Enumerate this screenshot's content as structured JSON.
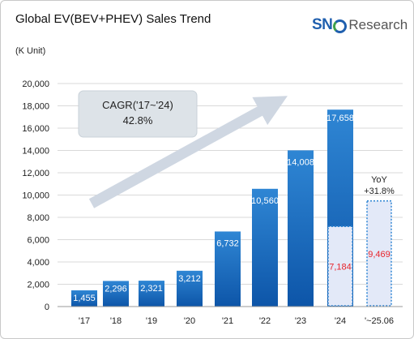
{
  "title": "Global EV(BEV+PHEV) Sales Trend",
  "unit": "(K Unit)",
  "logo": {
    "sn": "SN",
    "research": "Research"
  },
  "annotations": {
    "cagr_label": "CAGR('17~'24)",
    "cagr_value": "42.8%",
    "yoy_label": "YoY",
    "yoy_value": "+31.8%"
  },
  "colors": {
    "bar_top": "#2f86d4",
    "bar_bottom": "#0d55a8",
    "partial_fill": "#e3e9f8",
    "partial_border": "#2f86d4",
    "partial_label": "#e8242b",
    "arrow": "#cfd7e2",
    "cagr_box": "#dde3e8",
    "grid": "#d9d9d9"
  },
  "chart_data": {
    "type": "bar",
    "title": "Global EV(BEV+PHEV) Sales Trend",
    "ylabel": "(K Unit)",
    "ylim": [
      0,
      20000
    ],
    "yticks": [
      0,
      2000,
      4000,
      6000,
      8000,
      10000,
      12000,
      14000,
      16000,
      18000,
      20000
    ],
    "ytick_labels": [
      "0",
      "2,000",
      "4,000",
      "6,000",
      "8,000",
      "10,000",
      "12,000",
      "14,000",
      "16,000",
      "18,000",
      "20,000"
    ],
    "grid": true,
    "categories": [
      "'17",
      "'18",
      "'19",
      "'20",
      "'21",
      "'22",
      "'23",
      "'24",
      "'~25.06"
    ],
    "series": [
      {
        "values": [
          1455,
          2296,
          2321,
          3212,
          6732,
          10560,
          14008,
          17658,
          null
        ],
        "labels": [
          "1,455",
          "2,296",
          "2,321",
          "3,212",
          "6,732",
          "10,560",
          "14,008",
          "17,658",
          ""
        ]
      },
      {
        "values": [
          null,
          null,
          null,
          null,
          null,
          null,
          null,
          7184,
          9469
        ],
        "labels": [
          "",
          "",
          "",
          "",
          "",
          "",
          "",
          "7,184",
          "9,469"
        ]
      }
    ]
  }
}
